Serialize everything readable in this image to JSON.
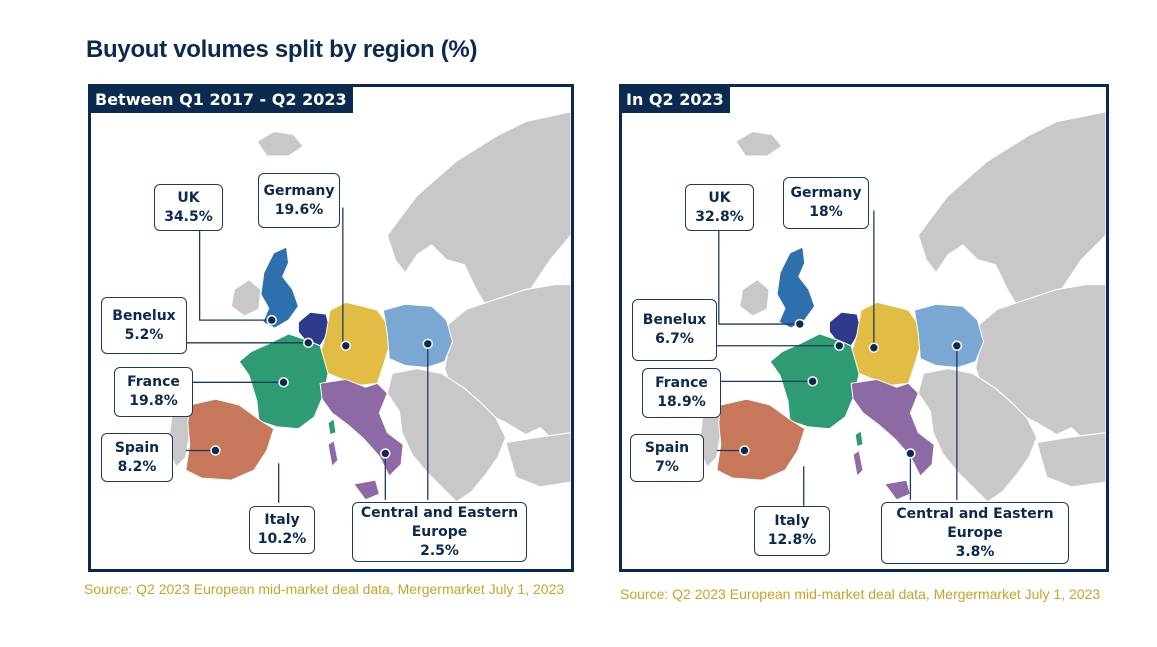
{
  "title": "Buyout volumes split by region (%)",
  "colors": {
    "uk": "#2e6fae",
    "benelux": "#2e3a8c",
    "germany": "#e1bd45",
    "cee": "#7aa8d2",
    "france": "#2f9b73",
    "spain": "#c8785a",
    "italy": "#8d6aa4",
    "land": "#c8c8c8",
    "frame": "#0b2a4f",
    "source": "#c9a227"
  },
  "panels": [
    {
      "header": "Between Q1 2017 - Q2 2023",
      "regions": {
        "uk": {
          "name": "UK",
          "value": "34.5%"
        },
        "germany": {
          "name": "Germany",
          "value": "19.6%"
        },
        "benelux": {
          "name": "Benelux",
          "value": "5.2%"
        },
        "france": {
          "name": "France",
          "value": "19.8%"
        },
        "spain": {
          "name": "Spain",
          "value": "8.2%"
        },
        "italy": {
          "name": "Italy",
          "value": "10.2%"
        },
        "cee": {
          "name": "Central and Eastern Europe",
          "value": "2.5%"
        }
      },
      "source": "Source: Q2 2023 European mid-market deal data, Mergermarket July 1, 2023"
    },
    {
      "header": "In Q2 2023",
      "regions": {
        "uk": {
          "name": "UK",
          "value": "32.8%"
        },
        "germany": {
          "name": "Germany",
          "value": "18%"
        },
        "benelux": {
          "name": "Benelux",
          "value": "6.7%"
        },
        "france": {
          "name": "France",
          "value": "18.9%"
        },
        "spain": {
          "name": "Spain",
          "value": "7%"
        },
        "italy": {
          "name": "Italy",
          "value": "12.8%"
        },
        "cee": {
          "name": "Central and Eastern Europe",
          "value": "3.8%"
        }
      },
      "source": "Source: Q2 2023 European mid-market deal data, Mergermarket July 1, 2023"
    }
  ]
}
